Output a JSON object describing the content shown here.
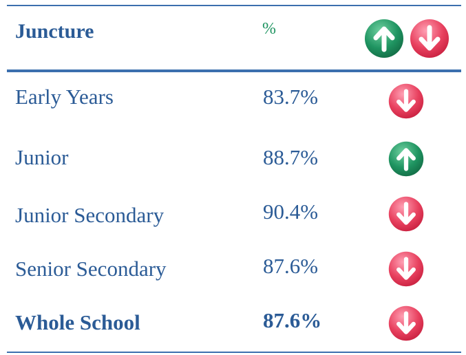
{
  "header": {
    "col1": "Juncture",
    "col2": "%"
  },
  "rows": [
    [
      "Early Years",
      "83.7%"
    ],
    [
      "Junior",
      "88.7%"
    ],
    [
      "Junior Secondary",
      "90.4%"
    ],
    [
      "Senior Secondary",
      "87.6%"
    ],
    [
      "Whole School",
      "87.6%"
    ]
  ]
}
